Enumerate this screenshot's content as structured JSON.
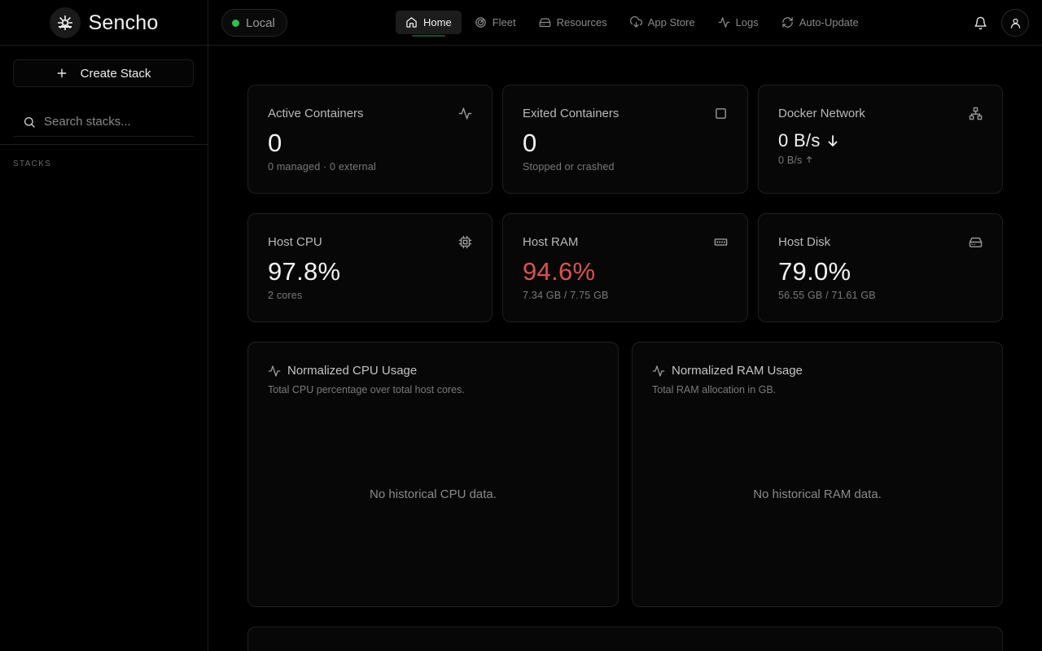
{
  "app": {
    "name": "Sencho",
    "logo_icon": "ship-wheel-icon"
  },
  "node": {
    "label": "Local",
    "status_color": "#2fbf4a"
  },
  "nav": [
    {
      "label": "Home",
      "icon": "home-icon",
      "active": true
    },
    {
      "label": "Fleet",
      "icon": "radar-icon"
    },
    {
      "label": "Resources",
      "icon": "hard-drive-icon"
    },
    {
      "label": "App Store",
      "icon": "cloud-download-icon"
    },
    {
      "label": "Logs",
      "icon": "activity-icon"
    },
    {
      "label": "Auto-Update",
      "icon": "refresh-icon"
    }
  ],
  "sidebar": {
    "create_label": "Create Stack",
    "search_placeholder": "Search stacks...",
    "stacks_label": "STACKS"
  },
  "stats": {
    "active": {
      "title": "Active Containers",
      "value": "0",
      "sub": "0 managed · 0 external",
      "icon": "activity-icon"
    },
    "exited": {
      "title": "Exited Containers",
      "value": "0",
      "sub": "Stopped or crashed",
      "icon": "square-icon"
    },
    "network": {
      "title": "Docker Network",
      "value": "0 B/s",
      "sub": "0 B/s",
      "icon": "network-icon"
    },
    "cpu": {
      "title": "Host CPU",
      "value": "97.8%",
      "sub": "2 cores",
      "icon": "cpu-icon"
    },
    "ram": {
      "title": "Host RAM",
      "value": "94.6%",
      "sub": "7.34 GB / 7.75 GB",
      "icon": "memory-icon",
      "alert_color": "#d9534f"
    },
    "disk": {
      "title": "Host Disk",
      "value": "79.0%",
      "sub": "56.55 GB / 71.61 GB",
      "icon": "hard-drive-icon"
    }
  },
  "charts": {
    "cpu": {
      "title": "Normalized CPU Usage",
      "desc": "Total CPU percentage over total host cores.",
      "empty": "No historical CPU data."
    },
    "ram": {
      "title": "Normalized RAM Usage",
      "desc": "Total RAM allocation in GB.",
      "empty": "No historical RAM data."
    }
  }
}
